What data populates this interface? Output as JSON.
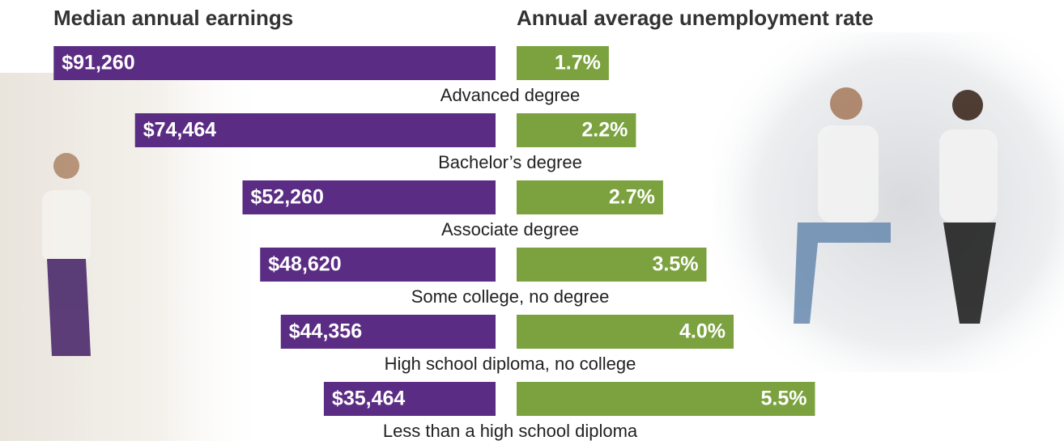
{
  "chart_data": {
    "type": "bar",
    "categories": [
      "Advanced degree",
      "Bachelor’s degree",
      "Associate degree",
      "Some college, no degree",
      "High school diploma, no college",
      "Less than a high school diploma"
    ],
    "series": [
      {
        "name": "Median annual earnings",
        "color": "#5b2c83",
        "direction": "left",
        "values": [
          91260,
          74464,
          52260,
          48620,
          44356,
          35464
        ],
        "value_labels": [
          "$91,260",
          "$74,464",
          "$52,260",
          "$48,620",
          "$44,356",
          "$35,464"
        ],
        "xlim": [
          0,
          100000
        ]
      },
      {
        "name": "Annual average unemployment rate",
        "color": "#7ba23f",
        "direction": "right",
        "values": [
          1.7,
          2.2,
          2.7,
          3.5,
          4.0,
          5.5
        ],
        "value_labels": [
          "1.7%",
          "2.2%",
          "2.7%",
          "3.5%",
          "4.0%",
          "5.5%"
        ],
        "xlim": [
          0,
          10
        ]
      }
    ]
  }
}
